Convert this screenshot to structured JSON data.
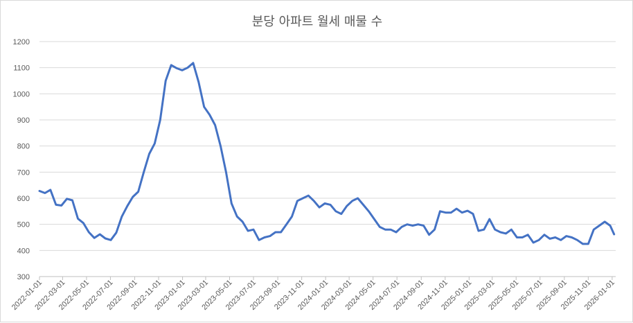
{
  "chart_data": {
    "type": "line",
    "title": "분당 아파트 월세 매물 수",
    "xlabel": "",
    "ylabel": "",
    "ylim": [
      300,
      1200
    ],
    "yticks": [
      300,
      400,
      500,
      600,
      700,
      800,
      900,
      1000,
      1100,
      1200
    ],
    "xlim": [
      "2022-01-01",
      "2026-01-10"
    ],
    "xticks": [
      "2022-01-01",
      "2022-03-01",
      "2022-05-01",
      "2022-07-01",
      "2022-09-01",
      "2022-11-01",
      "2023-01-01",
      "2023-03-01",
      "2023-05-01",
      "2023-07-01",
      "2023-09-01",
      "2023-11-01",
      "2024-01-01",
      "2024-03-01",
      "2024-05-01",
      "2024-07-01",
      "2024-09-01",
      "2024-11-01",
      "2025-01-01",
      "2025-03-01",
      "2025-05-01",
      "2025-07-01",
      "2025-09-01",
      "2025-11-01",
      "2026-01-01"
    ],
    "grid": "horizontal",
    "legend": "none",
    "line_color": "#4472c4",
    "series": [
      {
        "x": [
          "2022-01-01",
          "2022-01-15",
          "2022-01-29",
          "2022-02-12",
          "2022-02-26",
          "2022-03-12",
          "2022-03-26",
          "2022-04-09",
          "2022-04-23",
          "2022-05-07",
          "2022-05-21",
          "2022-06-04",
          "2022-06-18",
          "2022-07-02",
          "2022-07-16",
          "2022-07-30",
          "2022-08-13",
          "2022-08-27",
          "2022-09-10",
          "2022-09-24",
          "2022-10-08",
          "2022-10-22",
          "2022-11-05",
          "2022-11-19",
          "2022-12-03",
          "2022-12-17",
          "2022-12-31",
          "2023-01-14",
          "2023-01-28",
          "2023-02-11",
          "2023-02-25",
          "2023-03-11",
          "2023-03-25",
          "2023-04-08",
          "2023-04-22",
          "2023-05-06",
          "2023-05-20",
          "2023-06-03",
          "2023-06-17",
          "2023-07-01",
          "2023-07-15",
          "2023-07-29",
          "2023-08-12",
          "2023-08-26",
          "2023-09-09",
          "2023-09-23",
          "2023-10-07",
          "2023-10-21",
          "2023-11-04",
          "2023-11-18",
          "2023-12-02",
          "2023-12-16",
          "2023-12-30",
          "2024-01-13",
          "2024-01-27",
          "2024-02-10",
          "2024-02-24",
          "2024-03-09",
          "2024-03-23",
          "2024-04-06",
          "2024-04-20",
          "2024-05-04",
          "2024-05-18",
          "2024-06-01",
          "2024-06-15",
          "2024-06-29",
          "2024-07-13",
          "2024-07-27",
          "2024-08-10",
          "2024-08-24",
          "2024-09-07",
          "2024-09-21",
          "2024-10-05",
          "2024-10-19",
          "2024-11-02",
          "2024-11-16",
          "2024-11-30",
          "2024-12-14",
          "2024-12-28",
          "2025-01-11",
          "2025-01-25",
          "2025-02-08",
          "2025-02-22",
          "2025-03-08",
          "2025-03-22",
          "2025-04-05",
          "2025-04-19",
          "2025-05-03",
          "2025-05-17",
          "2025-05-31",
          "2025-06-14",
          "2025-06-28",
          "2025-07-12",
          "2025-07-26",
          "2025-08-09",
          "2025-08-23",
          "2025-09-06",
          "2025-09-20",
          "2025-10-04",
          "2025-10-18",
          "2025-11-01",
          "2025-11-15",
          "2025-11-29",
          "2025-12-13",
          "2025-12-27",
          "2026-01-06"
        ],
        "values": [
          628,
          620,
          632,
          575,
          572,
          598,
          592,
          522,
          505,
          470,
          448,
          462,
          446,
          440,
          468,
          530,
          570,
          605,
          625,
          700,
          770,
          810,
          900,
          1050,
          1110,
          1098,
          1090,
          1100,
          1118,
          1045,
          950,
          920,
          880,
          800,
          700,
          580,
          530,
          510,
          475,
          480,
          440,
          450,
          455,
          470,
          470,
          500,
          530,
          590,
          600,
          610,
          590,
          565,
          580,
          575,
          550,
          540,
          570,
          590,
          600,
          575,
          550,
          520,
          490,
          480,
          480,
          470,
          490,
          500,
          495,
          500,
          495,
          460,
          480,
          550,
          545,
          545,
          560,
          545,
          552,
          540,
          475,
          480,
          520,
          480,
          470,
          465,
          480,
          450,
          450,
          460,
          430,
          440,
          460,
          445,
          450,
          440,
          455,
          450,
          440,
          425,
          425,
          480,
          495,
          510,
          495,
          462
        ]
      }
    ]
  }
}
